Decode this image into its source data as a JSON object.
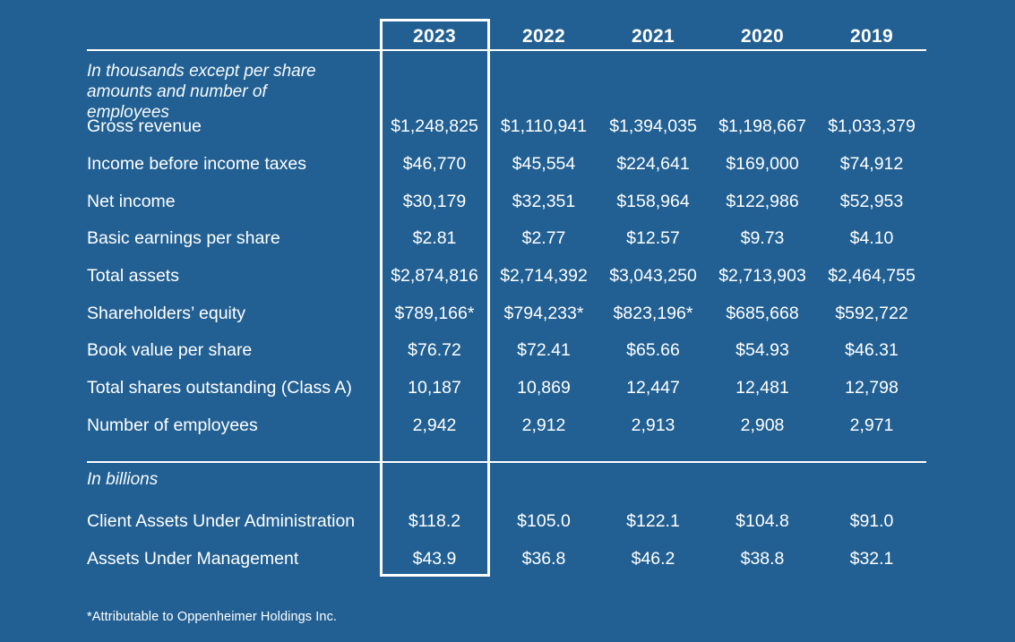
{
  "colors": {
    "background": "#226093",
    "text": "#ffffff",
    "rule": "#ffffff"
  },
  "table": {
    "years": [
      "2023",
      "2022",
      "2021",
      "2020",
      "2019"
    ],
    "highlighted_year": "2023",
    "note_thousands": "In thousands except per share amounts and number of employees",
    "rows": [
      {
        "label": "Gross revenue",
        "values": [
          "$1,248,825",
          "$1,110,941",
          "$1,394,035",
          "$1,198,667",
          "$1,033,379"
        ]
      },
      {
        "label": "Income before income taxes",
        "values": [
          "$46,770",
          "$45,554",
          "$224,641",
          "$169,000",
          "$74,912"
        ]
      },
      {
        "label": "Net income",
        "values": [
          "$30,179",
          "$32,351",
          "$158,964",
          "$122,986",
          "$52,953"
        ]
      },
      {
        "label": "Basic earnings per share",
        "values": [
          "$2.81",
          "$2.77",
          "$12.57",
          "$9.73",
          "$4.10"
        ]
      },
      {
        "label": "Total assets",
        "values": [
          "$2,874,816",
          "$2,714,392",
          "$3,043,250",
          "$2,713,903",
          "$2,464,755"
        ]
      },
      {
        "label": "Shareholders’ equity",
        "values": [
          "$789,166*",
          "$794,233*",
          "$823,196*",
          "$685,668",
          "$592,722"
        ]
      },
      {
        "label": "Book value per share",
        "values": [
          "$76.72",
          "$72.41",
          "$65.66",
          "$54.93",
          "$46.31"
        ]
      },
      {
        "label": "Total shares outstanding (Class A)",
        "values": [
          "10,187",
          "10,869",
          "12,447",
          "12,481",
          "12,798"
        ]
      },
      {
        "label": "Number of employees",
        "values": [
          "2,942",
          "2,912",
          "2,913",
          "2,908",
          "2,971"
        ]
      }
    ],
    "note_billions": "In billions",
    "billions_rows": [
      {
        "label": "Client Assets Under Administration",
        "values": [
          "$118.2",
          "$105.0",
          "$122.1",
          "$104.8",
          "$91.0"
        ]
      },
      {
        "label": "Assets Under Management",
        "values": [
          "$43.9",
          "$36.8",
          "$46.2",
          "$38.8",
          "$32.1"
        ]
      }
    ],
    "footnote": "*Attributable to Oppenheimer Holdings Inc."
  }
}
